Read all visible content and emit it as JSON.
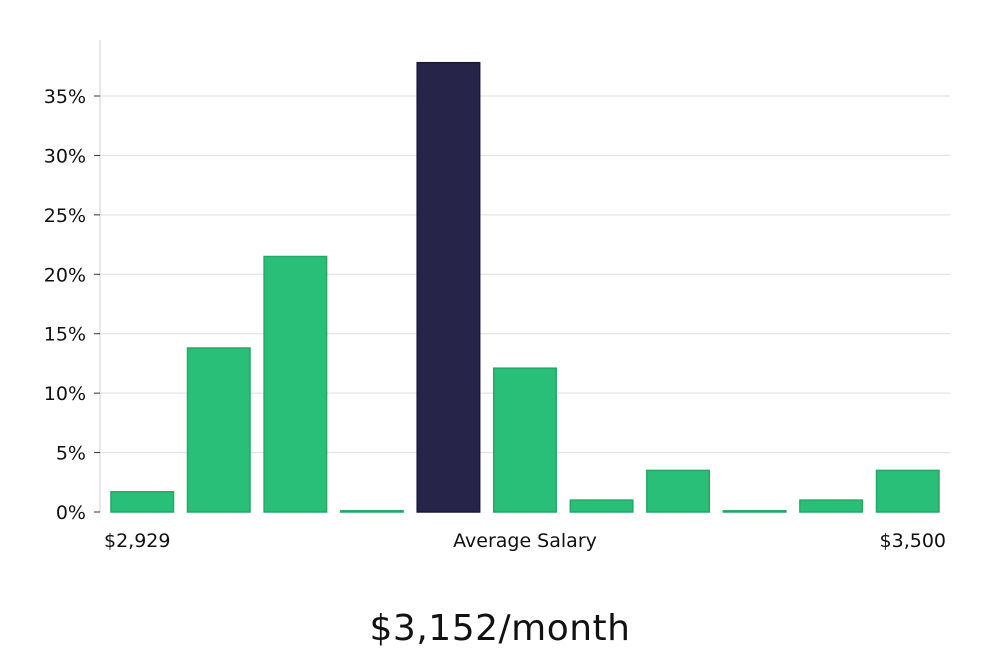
{
  "chart_data": {
    "type": "bar",
    "values": [
      1.7,
      13.8,
      21.5,
      0.1,
      37.8,
      12.1,
      1.0,
      3.5,
      0.1,
      1.0,
      3.5
    ],
    "highlight_index": 4,
    "ylim": [
      0,
      40
    ],
    "yticks": [
      0,
      5,
      10,
      15,
      20,
      25,
      30,
      35
    ],
    "ytick_format": "%",
    "x_labels": {
      "min": "$2,929",
      "center": "Average Salary",
      "max": "$3,500"
    },
    "grid": true,
    "colors": {
      "bar": "#2abf78",
      "highlight": "#27244a",
      "grid": "#dddddd",
      "axis": "#cccccc"
    }
  },
  "salary_label": "$3,152/month"
}
